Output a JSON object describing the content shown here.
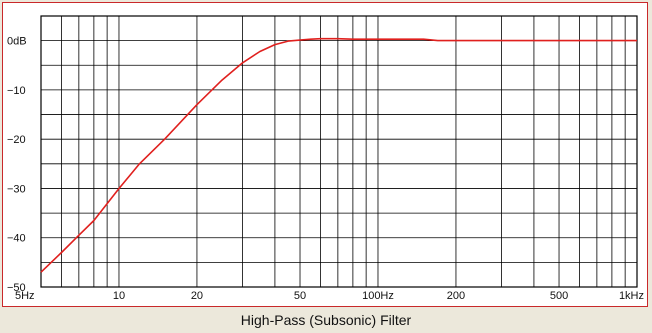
{
  "caption": "High-Pass (Subsonic) Filter",
  "colors": {
    "curve": "#e0201e",
    "grid": "#000000",
    "border": "#c9282a",
    "background": "#ece8db",
    "plot": "#ffffff"
  },
  "chart_data": {
    "type": "line",
    "title": "High-Pass (Subsonic) Filter",
    "xlabel": "",
    "ylabel": "",
    "x_scale": "log",
    "xlim": [
      5,
      1000
    ],
    "ylim": [
      -50,
      5
    ],
    "grid": true,
    "x_ticks": [
      {
        "value": 5,
        "label": "5Hz"
      },
      {
        "value": 10,
        "label": "10"
      },
      {
        "value": 20,
        "label": "20"
      },
      {
        "value": 50,
        "label": "50"
      },
      {
        "value": 100,
        "label": "100Hz"
      },
      {
        "value": 200,
        "label": "200"
      },
      {
        "value": 500,
        "label": "500"
      },
      {
        "value": 1000,
        "label": "1kHz"
      }
    ],
    "y_ticks": [
      {
        "value": 0,
        "label": "0dB"
      },
      {
        "value": -10,
        "label": "−10"
      },
      {
        "value": -20,
        "label": "−20"
      },
      {
        "value": -30,
        "label": "−30"
      },
      {
        "value": -40,
        "label": "−40"
      },
      {
        "value": -50,
        "label": "−50"
      }
    ],
    "series": [
      {
        "x": [
          5,
          6,
          7,
          8,
          10,
          12,
          15,
          20,
          25,
          30,
          35,
          40,
          45,
          50,
          55,
          60,
          70,
          80,
          100,
          150,
          170,
          200,
          300,
          500,
          700,
          1000
        ],
        "y": [
          -47,
          -43,
          -39.5,
          -36.5,
          -30,
          -25,
          -20,
          -13,
          -8,
          -4.5,
          -2.2,
          -0.8,
          -0.1,
          0.1,
          0.3,
          0.4,
          0.4,
          0.3,
          0.3,
          0.3,
          0,
          0,
          0,
          0,
          0,
          0
        ]
      }
    ]
  }
}
